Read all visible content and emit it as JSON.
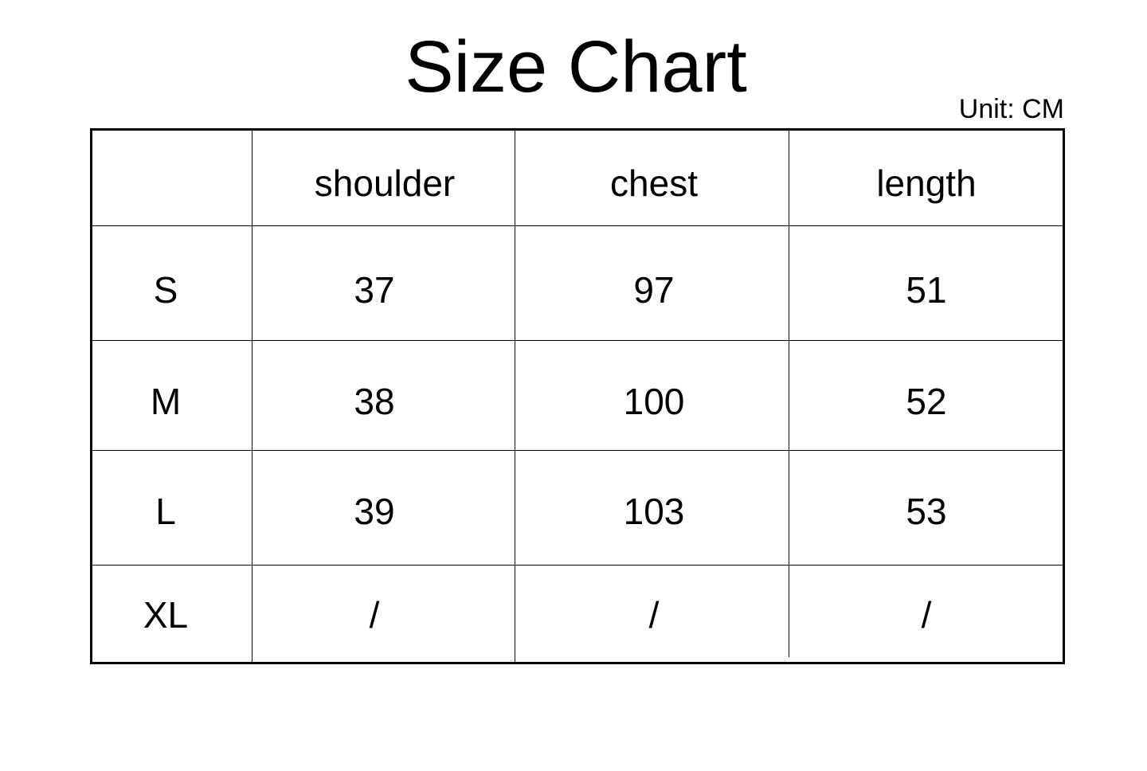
{
  "title": "Size Chart",
  "unit": "Unit: CM",
  "table": {
    "headers": [
      "",
      "shoulder",
      "chest",
      "length"
    ],
    "rows": [
      [
        "S",
        "37",
        "97",
        "51"
      ],
      [
        "M",
        "38",
        "100",
        "52"
      ],
      [
        "L",
        "39",
        "103",
        "53"
      ],
      [
        "XL",
        "/",
        "/",
        "/"
      ]
    ]
  }
}
